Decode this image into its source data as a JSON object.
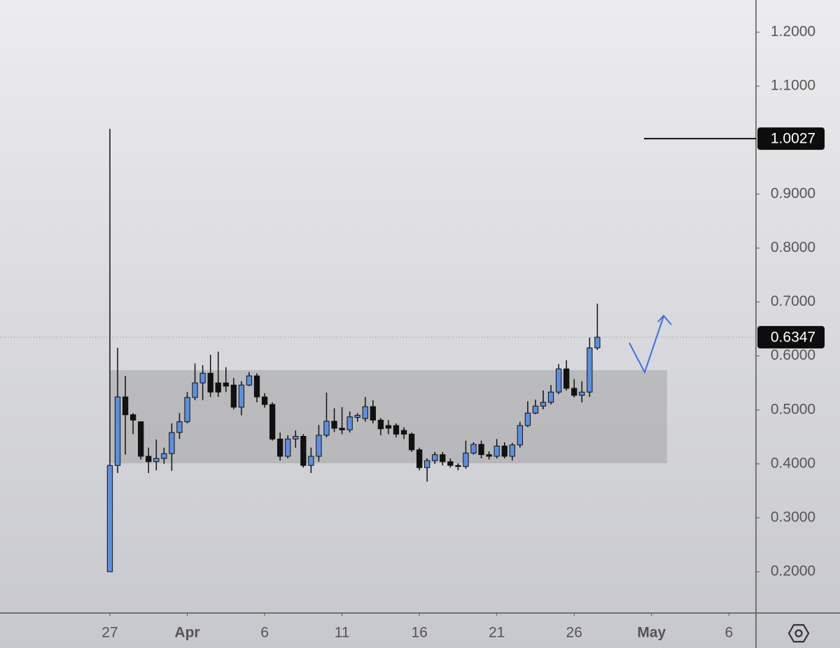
{
  "chart_data": {
    "type": "candlestick",
    "open": [
      0.2,
      0.397,
      0.524,
      0.491,
      0.478,
      0.414,
      0.404,
      0.41,
      0.419,
      0.458,
      0.478,
      0.523,
      0.55,
      0.568,
      0.55,
      0.55,
      0.546,
      0.505,
      0.546,
      0.563,
      0.524,
      0.51,
      0.446,
      0.414,
      0.446,
      0.451,
      0.397,
      0.414,
      0.453,
      0.479,
      0.466,
      0.463,
      0.486,
      0.484,
      0.506,
      0.481,
      0.471,
      0.471,
      0.462,
      0.455,
      0.426,
      0.393,
      0.406,
      0.417,
      0.404,
      0.397,
      0.395,
      0.42,
      0.436,
      0.417,
      0.414,
      0.433,
      0.414,
      0.435,
      0.471,
      0.494,
      0.507,
      0.514,
      0.533,
      0.576,
      0.54,
      0.527,
      0.533,
      0.615
    ],
    "high": [
      1.021,
      0.615,
      0.563,
      0.494,
      0.478,
      0.43,
      0.445,
      0.43,
      0.475,
      0.494,
      0.533,
      0.586,
      0.583,
      0.602,
      0.608,
      0.579,
      0.559,
      0.553,
      0.57,
      0.568,
      0.531,
      0.514,
      0.458,
      0.453,
      0.462,
      0.455,
      0.43,
      0.472,
      0.532,
      0.503,
      0.505,
      0.497,
      0.494,
      0.524,
      0.518,
      0.485,
      0.481,
      0.475,
      0.468,
      0.458,
      0.43,
      0.41,
      0.422,
      0.422,
      0.41,
      0.401,
      0.443,
      0.44,
      0.443,
      0.423,
      0.446,
      0.44,
      0.439,
      0.478,
      0.516,
      0.519,
      0.536,
      0.546,
      0.585,
      0.592,
      0.557,
      0.553,
      0.634,
      0.697
    ],
    "low": [
      0.2,
      0.383,
      0.417,
      0.455,
      0.408,
      0.383,
      0.388,
      0.4,
      0.387,
      0.446,
      0.475,
      0.518,
      0.518,
      0.524,
      0.524,
      0.533,
      0.501,
      0.49,
      0.544,
      0.514,
      0.504,
      0.443,
      0.406,
      0.41,
      0.43,
      0.393,
      0.383,
      0.404,
      0.449,
      0.459,
      0.455,
      0.458,
      0.478,
      0.478,
      0.475,
      0.453,
      0.455,
      0.449,
      0.446,
      0.422,
      0.388,
      0.367,
      0.4,
      0.397,
      0.393,
      0.388,
      0.391,
      0.417,
      0.41,
      0.408,
      0.41,
      0.41,
      0.406,
      0.43,
      0.468,
      0.492,
      0.501,
      0.51,
      0.529,
      0.536,
      0.523,
      0.514,
      0.524,
      0.611
    ],
    "close": [
      0.397,
      0.524,
      0.491,
      0.481,
      0.414,
      0.404,
      0.41,
      0.419,
      0.458,
      0.478,
      0.523,
      0.55,
      0.568,
      0.533,
      0.533,
      0.544,
      0.505,
      0.546,
      0.563,
      0.524,
      0.51,
      0.446,
      0.414,
      0.446,
      0.451,
      0.397,
      0.414,
      0.453,
      0.479,
      0.466,
      0.463,
      0.487,
      0.49,
      0.506,
      0.481,
      0.465,
      0.466,
      0.455,
      0.455,
      0.426,
      0.393,
      0.406,
      0.417,
      0.404,
      0.397,
      0.395,
      0.42,
      0.436,
      0.417,
      0.414,
      0.433,
      0.414,
      0.435,
      0.471,
      0.494,
      0.507,
      0.514,
      0.533,
      0.576,
      0.54,
      0.527,
      0.533,
      0.615,
      0.6347
    ],
    "up_color": "#5b8fe0",
    "down_color": "#111111",
    "xlim": [
      -14.2,
      83.5
    ],
    "xticks": [
      {
        "value": 0,
        "label": "27"
      },
      {
        "value": 10,
        "label": "Apr"
      },
      {
        "value": 20,
        "label": "6"
      },
      {
        "value": 30,
        "label": "11"
      },
      {
        "value": 40,
        "label": "16"
      },
      {
        "value": 50,
        "label": "21"
      },
      {
        "value": 60,
        "label": "26"
      },
      {
        "value": 70,
        "label": "May"
      },
      {
        "value": 80,
        "label": "6"
      }
    ],
    "ylim": [
      0.1235,
      1.2597
    ],
    "yticks": [
      {
        "value": 1.2,
        "label": "1.2000"
      },
      {
        "value": 1.1,
        "label": "1.1000"
      },
      {
        "value": 0.9,
        "label": "0.9000"
      },
      {
        "value": 0.8,
        "label": "0.8000"
      },
      {
        "value": 0.7,
        "label": "0.7000"
      },
      {
        "value": 0.6,
        "label": "0.6000"
      },
      {
        "value": 0.5,
        "label": "0.5000"
      },
      {
        "value": 0.4,
        "label": "0.4000"
      },
      {
        "value": 0.3,
        "label": "0.3000"
      },
      {
        "value": 0.2,
        "label": "0.2000"
      }
    ],
    "horizontal_line": 1.0027,
    "last_price": 0.6347,
    "zone": {
      "top": 0.5735,
      "bottom": 0.401,
      "start": 0,
      "end": 72
    }
  }
}
